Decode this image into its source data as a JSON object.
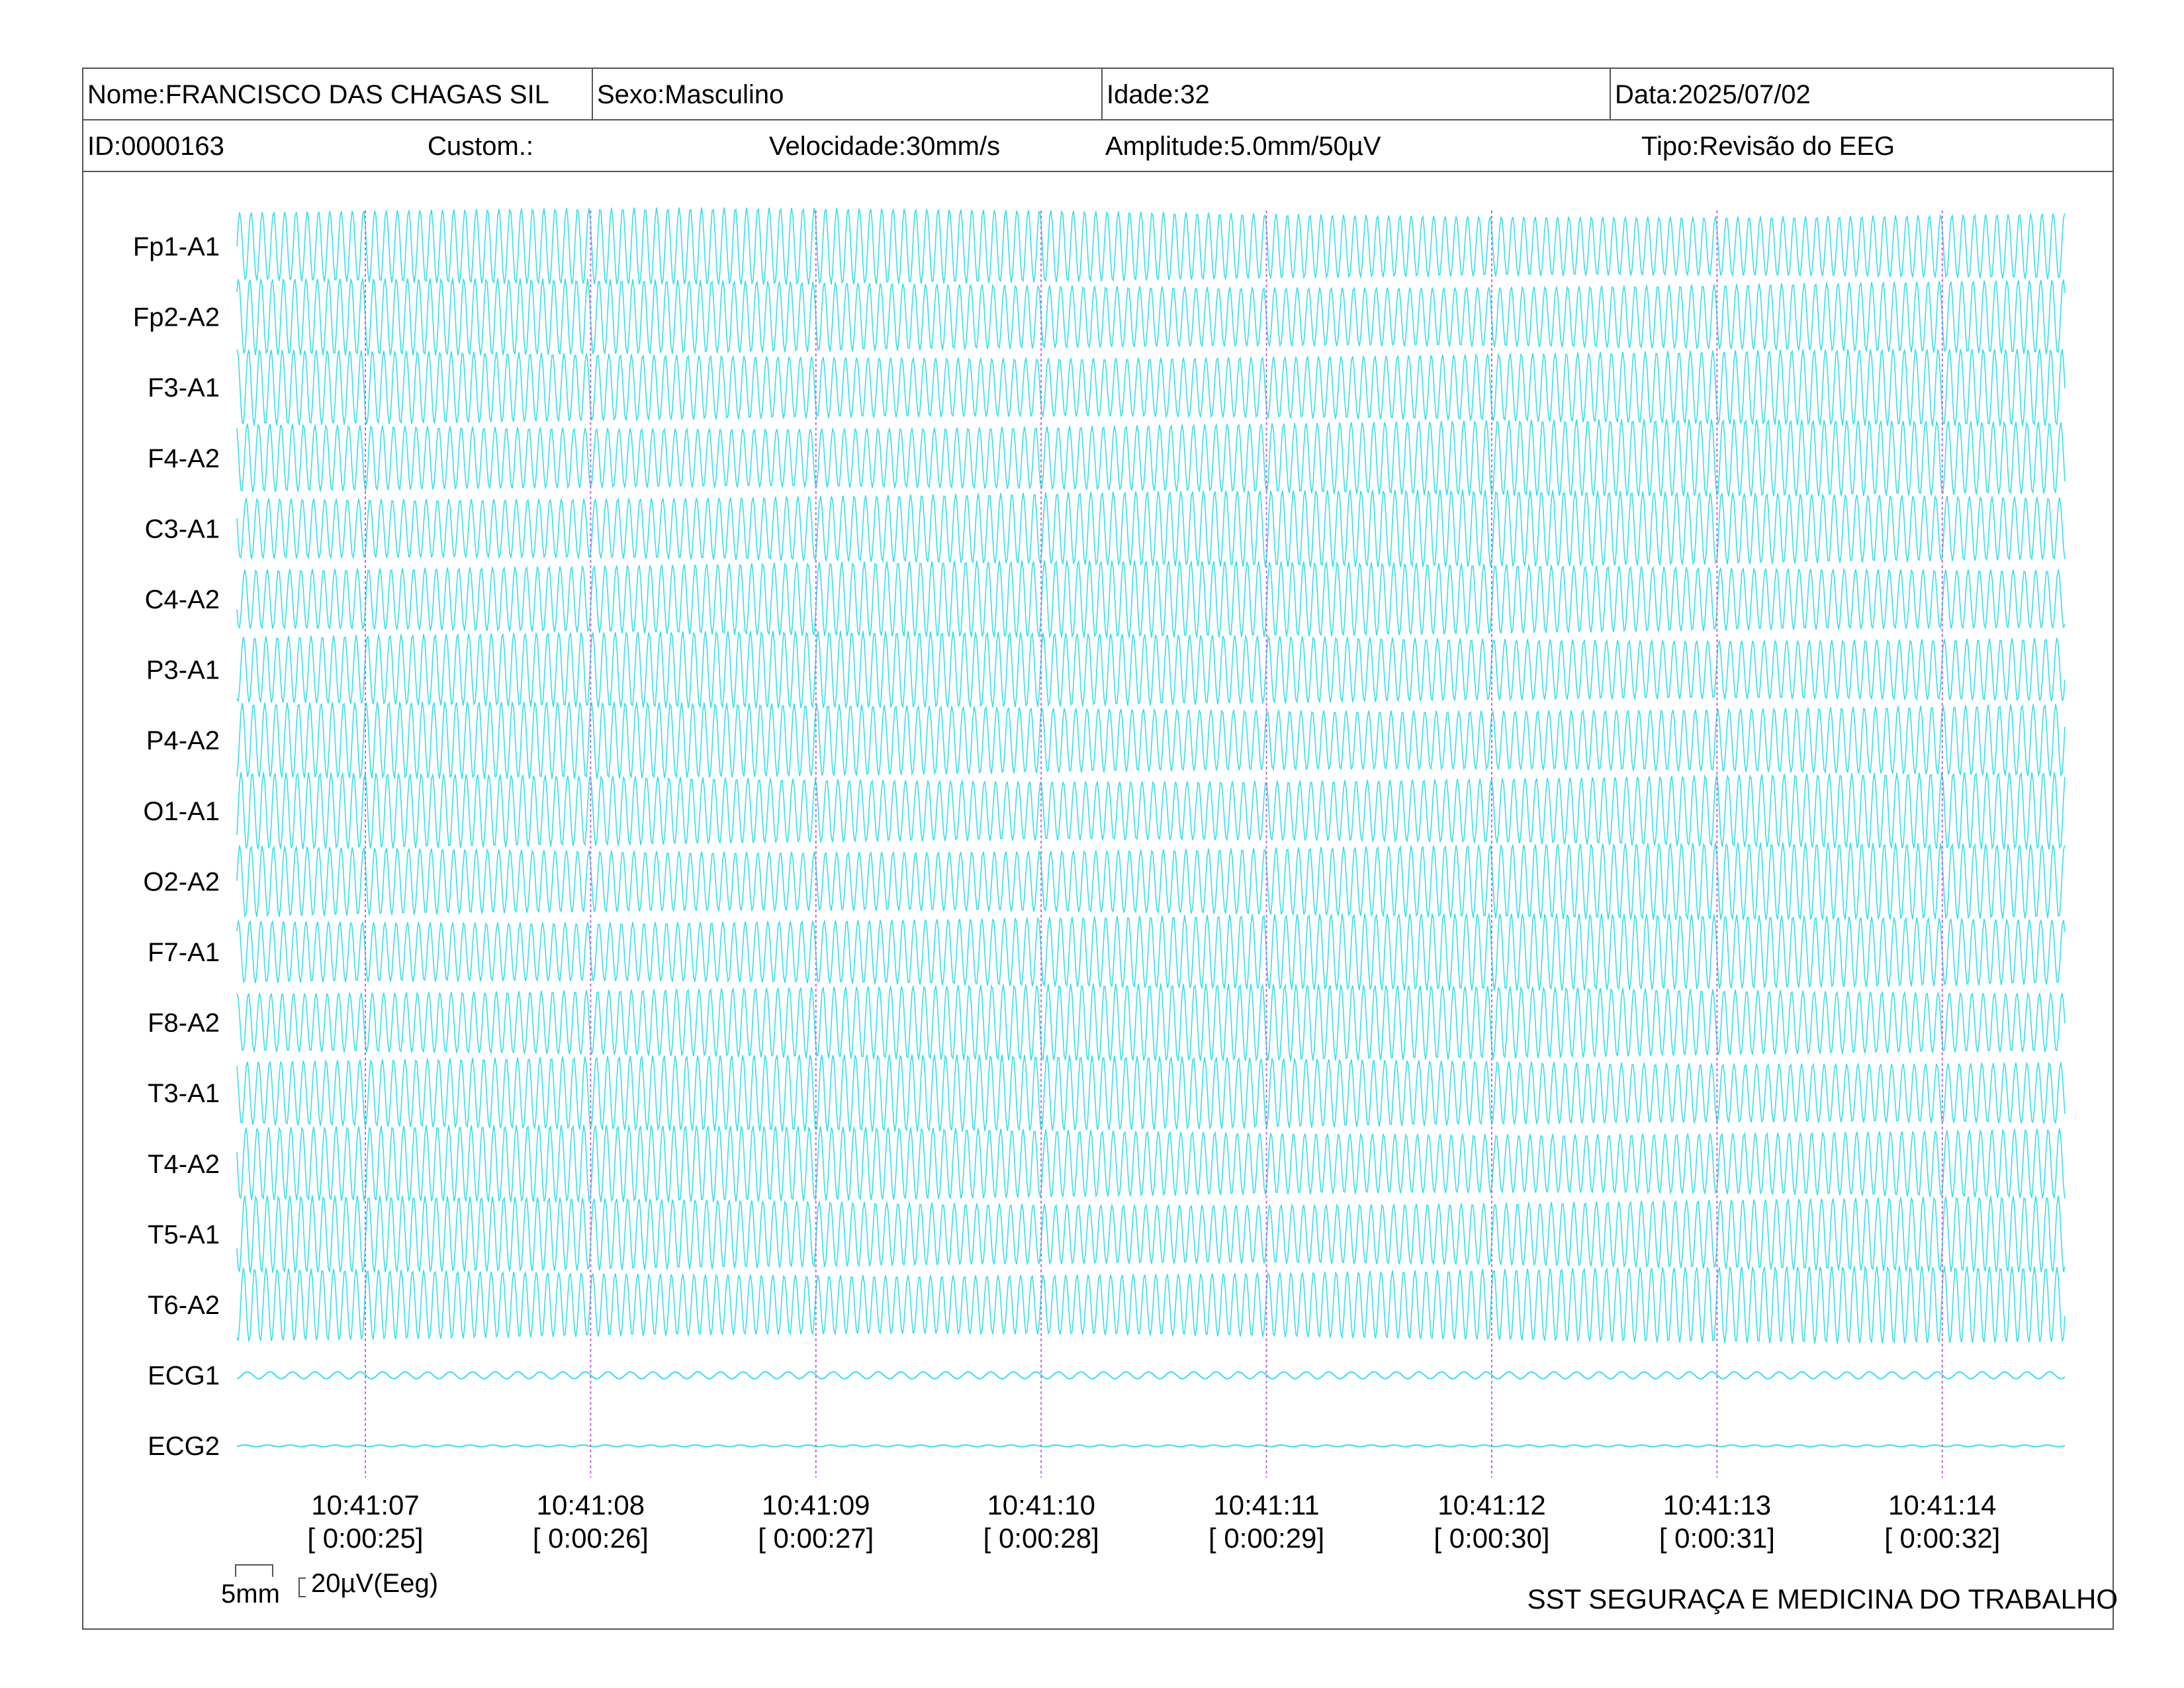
{
  "header": {
    "nome": "Nome:FRANCISCO DAS CHAGAS SIL",
    "sexo": "Sexo:Masculino",
    "idade": "Idade:32",
    "data": "Data:2025/07/02",
    "id": "ID:0000163",
    "custom": "Custom.:",
    "velocidade": "Velocidade:30mm/s",
    "amplitude": "Amplitude:5.0mm/50µV",
    "tipo": "Tipo:Revisão do EEG"
  },
  "scale": {
    "mm_label": "5mm",
    "uv_label": "20µV(Eeg)"
  },
  "footer": {
    "organization": "SST SEGURAÇA E MEDICINA DO TRABALHO"
  },
  "colors": {
    "trace": "#35e0ea",
    "marker": "#c066e0",
    "border": "#555555"
  },
  "chart_data": {
    "type": "line",
    "channels": [
      "Fp1-A1",
      "Fp2-A2",
      "F3-A1",
      "F4-A2",
      "C3-A1",
      "C4-A2",
      "P3-A1",
      "P4-A2",
      "O1-A1",
      "O2-A2",
      "F7-A1",
      "F8-A2",
      "T3-A1",
      "T4-A2",
      "T5-A1",
      "T6-A2",
      "ECG1",
      "ECG2"
    ],
    "time_markers": [
      {
        "clock": "10:41:07",
        "elapsed": "[ 0:00:25]"
      },
      {
        "clock": "10:41:08",
        "elapsed": "[ 0:00:26]"
      },
      {
        "clock": "10:41:09",
        "elapsed": "[ 0:00:27]"
      },
      {
        "clock": "10:41:10",
        "elapsed": "[ 0:00:28]"
      },
      {
        "clock": "10:41:11",
        "elapsed": "[ 0:00:29]"
      },
      {
        "clock": "10:41:12",
        "elapsed": "[ 0:00:30]"
      },
      {
        "clock": "10:41:13",
        "elapsed": "[ 0:00:31]"
      },
      {
        "clock": "10:41:14",
        "elapsed": "[ 0:00:32]"
      }
    ],
    "eeg_frequency_hz": 20,
    "ecg_frequency_hz": 10,
    "eeg_amplitude_uV": 90,
    "ecg1_amplitude_uV": 8,
    "ecg2_amplitude_uV": 2,
    "grid": false
  }
}
